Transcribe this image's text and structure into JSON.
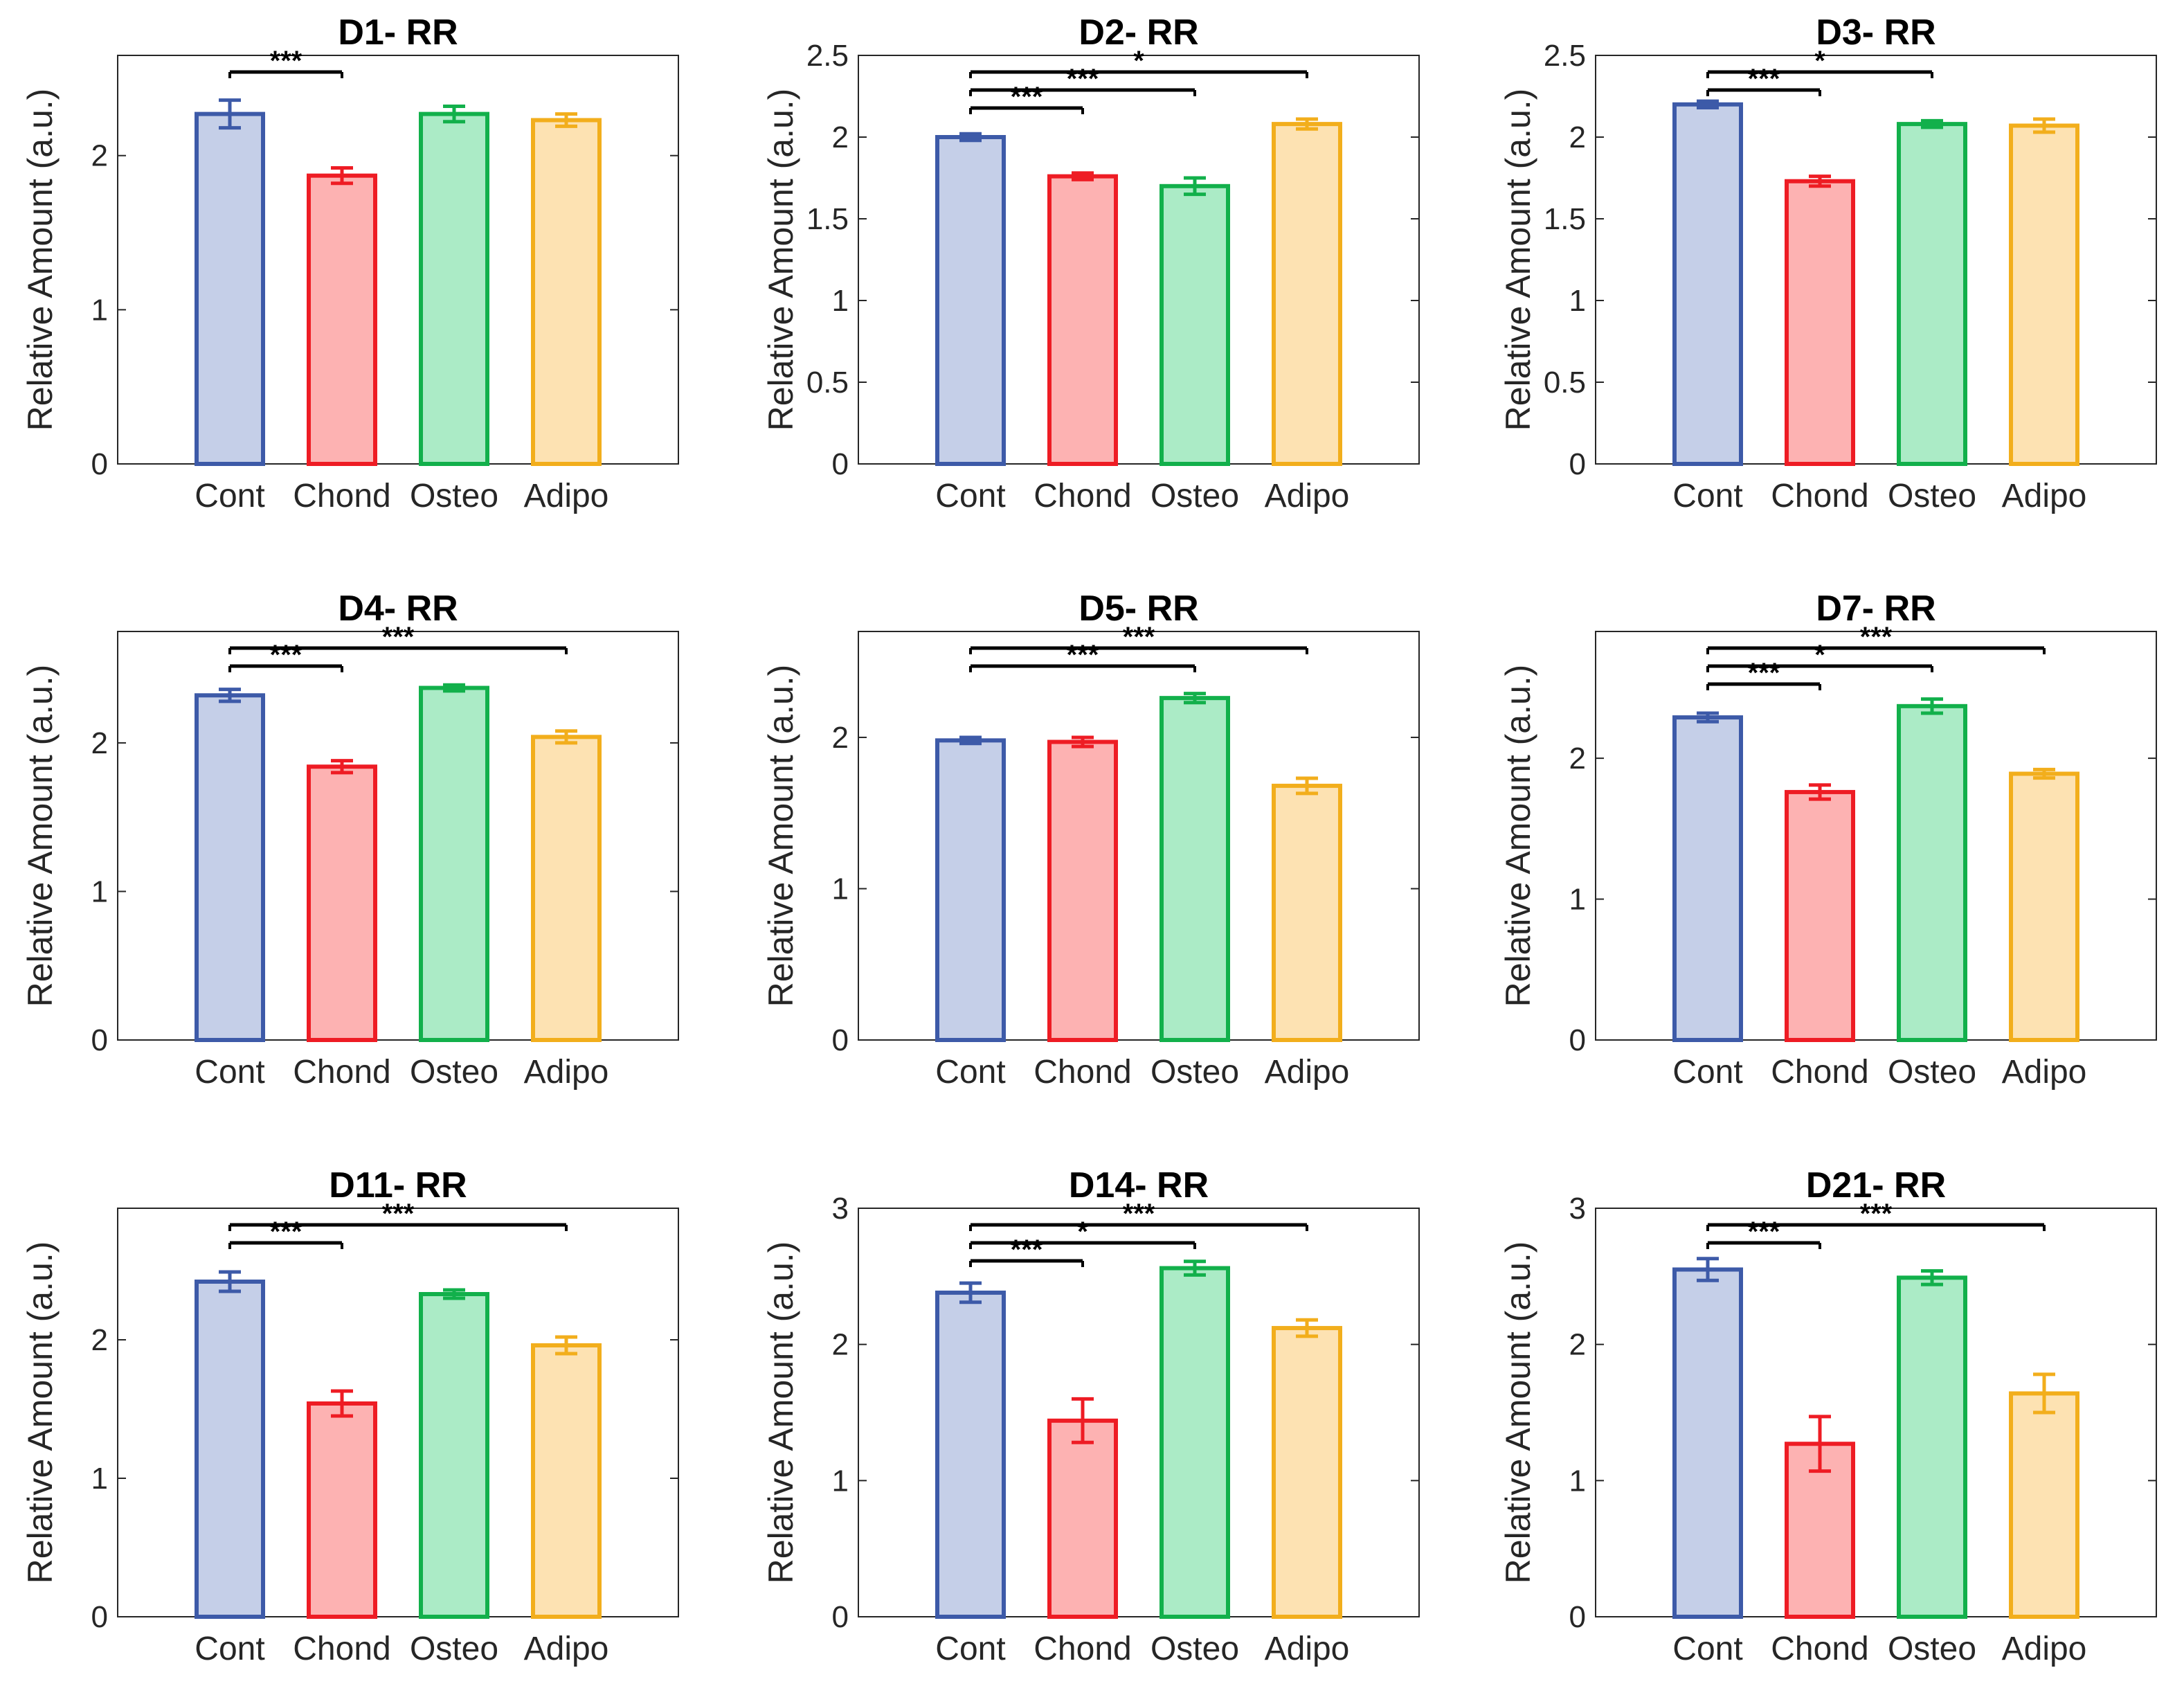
{
  "figure": {
    "palette": {
      "Cont": {
        "stroke": "#3d5aa8",
        "fill": "#c5cfe8"
      },
      "Chond": {
        "stroke": "#ee1c24",
        "fill": "#fdb2b2"
      },
      "Osteo": {
        "stroke": "#12b04b",
        "fill": "#abebc6"
      },
      "Adipo": {
        "stroke": "#f2ae1c",
        "fill": "#fde2b2"
      }
    }
  },
  "chart_data": [
    {
      "type": "bar",
      "title": "D1- RR",
      "ylabel": "Relative Amount (a.u.)",
      "categories": [
        "Cont",
        "Chond",
        "Osteo",
        "Adipo"
      ],
      "values": [
        2.27,
        1.87,
        2.27,
        2.23
      ],
      "errors": [
        0.09,
        0.05,
        0.05,
        0.04
      ],
      "ylim": [
        0,
        2.65
      ],
      "yticks": [
        "0",
        "1",
        "2"
      ],
      "significance": [
        {
          "from": 0,
          "to": 1,
          "label": "***"
        }
      ]
    },
    {
      "type": "bar",
      "title": "D2- RR",
      "ylabel": "Relative Amount (a.u.)",
      "categories": [
        "Cont",
        "Chond",
        "Osteo",
        "Adipo"
      ],
      "values": [
        2.0,
        1.76,
        1.7,
        2.08
      ],
      "errors": [
        0.02,
        0.02,
        0.05,
        0.03
      ],
      "ylim": [
        0,
        2.5
      ],
      "yticks": [
        "0",
        "0.5",
        "1",
        "1.5",
        "2",
        "2.5"
      ],
      "significance": [
        {
          "from": 0,
          "to": 1,
          "label": "***"
        },
        {
          "from": 0,
          "to": 2,
          "label": "***"
        },
        {
          "from": 0,
          "to": 3,
          "label": "*"
        }
      ]
    },
    {
      "type": "bar",
      "title": "D3- RR",
      "ylabel": "Relative Amount (a.u.)",
      "categories": [
        "Cont",
        "Chond",
        "Osteo",
        "Adipo"
      ],
      "values": [
        2.2,
        1.73,
        2.08,
        2.07
      ],
      "errors": [
        0.02,
        0.03,
        0.02,
        0.04
      ],
      "ylim": [
        0,
        2.5
      ],
      "yticks": [
        "0",
        "0.5",
        "1",
        "1.5",
        "2",
        "2.5"
      ],
      "significance": [
        {
          "from": 0,
          "to": 1,
          "label": "***"
        },
        {
          "from": 0,
          "to": 2,
          "label": "*"
        }
      ]
    },
    {
      "type": "bar",
      "title": "D4- RR",
      "ylabel": "Relative Amount (a.u.)",
      "categories": [
        "Cont",
        "Chond",
        "Osteo",
        "Adipo"
      ],
      "values": [
        2.32,
        1.84,
        2.37,
        2.04
      ],
      "errors": [
        0.04,
        0.04,
        0.02,
        0.04
      ],
      "ylim": [
        0,
        2.75
      ],
      "yticks": [
        "0",
        "1",
        "2"
      ],
      "significance": [
        {
          "from": 0,
          "to": 1,
          "label": "***"
        },
        {
          "from": 0,
          "to": 3,
          "label": "***"
        }
      ]
    },
    {
      "type": "bar",
      "title": "D5- RR",
      "ylabel": "Relative Amount (a.u.)",
      "categories": [
        "Cont",
        "Chond",
        "Osteo",
        "Adipo"
      ],
      "values": [
        1.98,
        1.97,
        2.26,
        1.68
      ],
      "errors": [
        0.02,
        0.03,
        0.03,
        0.05
      ],
      "ylim": [
        0,
        2.7
      ],
      "yticks": [
        "0",
        "1",
        "2"
      ],
      "significance": [
        {
          "from": 0,
          "to": 2,
          "label": "***"
        },
        {
          "from": 0,
          "to": 3,
          "label": "***"
        }
      ]
    },
    {
      "type": "bar",
      "title": "D7- RR",
      "ylabel": "Relative Amount (a.u.)",
      "categories": [
        "Cont",
        "Chond",
        "Osteo",
        "Adipo"
      ],
      "values": [
        2.29,
        1.76,
        2.37,
        1.89
      ],
      "errors": [
        0.03,
        0.05,
        0.05,
        0.03
      ],
      "ylim": [
        0,
        2.9
      ],
      "yticks": [
        "0",
        "1",
        "2"
      ],
      "significance": [
        {
          "from": 0,
          "to": 1,
          "label": "***"
        },
        {
          "from": 0,
          "to": 2,
          "label": "*"
        },
        {
          "from": 0,
          "to": 3,
          "label": "***"
        }
      ]
    },
    {
      "type": "bar",
      "title": "D11- RR",
      "ylabel": "Relative Amount (a.u.)",
      "categories": [
        "Cont",
        "Chond",
        "Osteo",
        "Adipo"
      ],
      "values": [
        2.42,
        1.54,
        2.33,
        1.96
      ],
      "errors": [
        0.07,
        0.09,
        0.03,
        0.06
      ],
      "ylim": [
        0,
        2.95
      ],
      "yticks": [
        "0",
        "1",
        "2"
      ],
      "significance": [
        {
          "from": 0,
          "to": 1,
          "label": "***"
        },
        {
          "from": 0,
          "to": 3,
          "label": "***"
        }
      ]
    },
    {
      "type": "bar",
      "title": "D14- RR",
      "ylabel": "Relative Amount (a.u.)",
      "categories": [
        "Cont",
        "Chond",
        "Osteo",
        "Adipo"
      ],
      "values": [
        2.38,
        1.44,
        2.56,
        2.12
      ],
      "errors": [
        0.07,
        0.16,
        0.05,
        0.06
      ],
      "ylim": [
        0,
        3
      ],
      "yticks": [
        "0",
        "1",
        "2",
        "3"
      ],
      "significance": [
        {
          "from": 0,
          "to": 1,
          "label": "***"
        },
        {
          "from": 0,
          "to": 2,
          "label": "*"
        },
        {
          "from": 0,
          "to": 3,
          "label": "***"
        }
      ]
    },
    {
      "type": "bar",
      "title": "D21- RR",
      "ylabel": "Relative Amount (a.u.)",
      "categories": [
        "Cont",
        "Chond",
        "Osteo",
        "Adipo"
      ],
      "values": [
        2.55,
        1.27,
        2.49,
        1.64
      ],
      "errors": [
        0.08,
        0.2,
        0.05,
        0.14
      ],
      "ylim": [
        0,
        3
      ],
      "yticks": [
        "0",
        "1",
        "2",
        "3"
      ],
      "significance": [
        {
          "from": 0,
          "to": 1,
          "label": "***"
        },
        {
          "from": 0,
          "to": 3,
          "label": "***"
        }
      ]
    }
  ]
}
